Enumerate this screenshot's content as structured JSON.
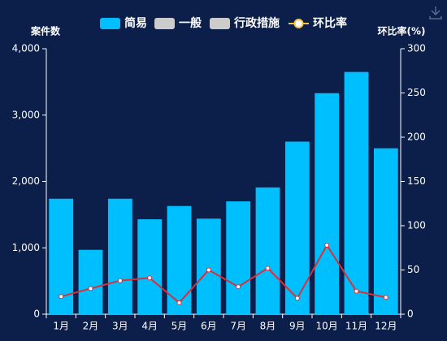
{
  "chart_data": {
    "type": "bar",
    "categories": [
      "1月",
      "2月",
      "3月",
      "4月",
      "5月",
      "6月",
      "7月",
      "8月",
      "9月",
      "10月",
      "11月",
      "12月"
    ],
    "ylabel": "案件数",
    "y2label": "环比率(%)",
    "series": [
      {
        "name": "简易",
        "color": "#00bfff",
        "type": "bar",
        "values": [
          1740,
          970,
          1740,
          1430,
          1630,
          1440,
          1700,
          1910,
          2600,
          3330,
          3650,
          2500
        ]
      },
      {
        "name": "一般",
        "color": "#cccccc",
        "type": "bar",
        "values": [
          null,
          null,
          null,
          null,
          null,
          null,
          null,
          null,
          null,
          null,
          null,
          null
        ]
      },
      {
        "name": "行政措施",
        "color": "#cccccc",
        "type": "bar",
        "values": [
          null,
          null,
          null,
          null,
          null,
          null,
          null,
          null,
          null,
          null,
          null,
          null
        ]
      },
      {
        "name": "环比率",
        "color": "#d9303a",
        "type": "line",
        "axis": "y2",
        "values": [
          20,
          29,
          38,
          41,
          13,
          50,
          31,
          52,
          18,
          78,
          26,
          19
        ]
      }
    ],
    "ylim": [
      0,
      4000
    ],
    "yticks": [
      0,
      {
        "value": 1000,
        "label": "1,000"
      },
      {
        "value": 2000,
        "label": "2,000"
      },
      {
        "value": 3000,
        "label": "3,000"
      },
      {
        "value": 4000,
        "label": "4,000"
      }
    ],
    "y2lim": [
      0,
      300
    ],
    "y2ticks": [
      0,
      50,
      100,
      150,
      200,
      250,
      300
    ]
  }
}
